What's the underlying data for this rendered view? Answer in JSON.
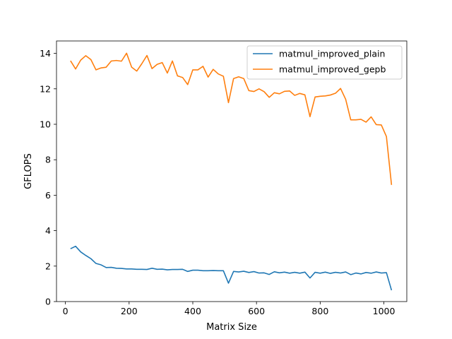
{
  "chart_data": {
    "type": "line",
    "xlabel": "Matrix Size",
    "ylabel": "GFLOPS",
    "xlim": [
      -28,
      1072
    ],
    "ylim": [
      0,
      14.7
    ],
    "xticks": [
      0,
      200,
      400,
      600,
      800,
      1000
    ],
    "yticks": [
      0,
      2,
      4,
      6,
      8,
      10,
      12,
      14
    ],
    "grid": false,
    "legend_position": "top-right",
    "x": [
      16,
      32,
      48,
      64,
      80,
      96,
      112,
      128,
      144,
      160,
      176,
      192,
      208,
      224,
      240,
      256,
      272,
      288,
      304,
      320,
      336,
      352,
      368,
      384,
      400,
      416,
      432,
      448,
      464,
      480,
      496,
      512,
      528,
      544,
      560,
      576,
      592,
      608,
      624,
      640,
      656,
      672,
      688,
      704,
      720,
      736,
      752,
      768,
      784,
      800,
      816,
      832,
      848,
      864,
      880,
      896,
      912,
      928,
      944,
      960,
      976,
      992,
      1008,
      1024
    ],
    "series": [
      {
        "name": "matmul_improved_plain",
        "color": "#1f77b4",
        "values": [
          2.98,
          3.12,
          2.8,
          2.6,
          2.42,
          2.15,
          2.07,
          1.92,
          1.93,
          1.88,
          1.87,
          1.84,
          1.84,
          1.82,
          1.82,
          1.81,
          1.88,
          1.82,
          1.83,
          1.79,
          1.81,
          1.81,
          1.82,
          1.7,
          1.77,
          1.77,
          1.74,
          1.74,
          1.75,
          1.74,
          1.74,
          1.04,
          1.7,
          1.67,
          1.71,
          1.64,
          1.69,
          1.61,
          1.62,
          1.53,
          1.68,
          1.62,
          1.66,
          1.6,
          1.65,
          1.6,
          1.66,
          1.33,
          1.65,
          1.6,
          1.66,
          1.59,
          1.65,
          1.61,
          1.67,
          1.52,
          1.61,
          1.56,
          1.64,
          1.6,
          1.67,
          1.61,
          1.63,
          0.64
        ]
      },
      {
        "name": "matmul_improved_gepb",
        "color": "#ff7f0e",
        "values": [
          13.58,
          13.12,
          13.62,
          13.87,
          13.65,
          13.07,
          13.18,
          13.22,
          13.57,
          13.6,
          13.56,
          14.01,
          13.22,
          13.0,
          13.42,
          13.88,
          13.14,
          13.38,
          13.48,
          12.89,
          13.57,
          12.73,
          12.64,
          12.24,
          13.07,
          13.07,
          13.27,
          12.66,
          13.1,
          12.84,
          12.71,
          11.22,
          12.58,
          12.68,
          12.58,
          11.9,
          11.85,
          12.0,
          11.84,
          11.52,
          11.78,
          11.72,
          11.86,
          11.88,
          11.63,
          11.74,
          11.66,
          10.43,
          11.54,
          11.58,
          11.6,
          11.65,
          11.75,
          12.02,
          11.41,
          10.25,
          10.25,
          10.28,
          10.12,
          10.42,
          9.98,
          9.96,
          9.31,
          6.58
        ]
      }
    ]
  }
}
